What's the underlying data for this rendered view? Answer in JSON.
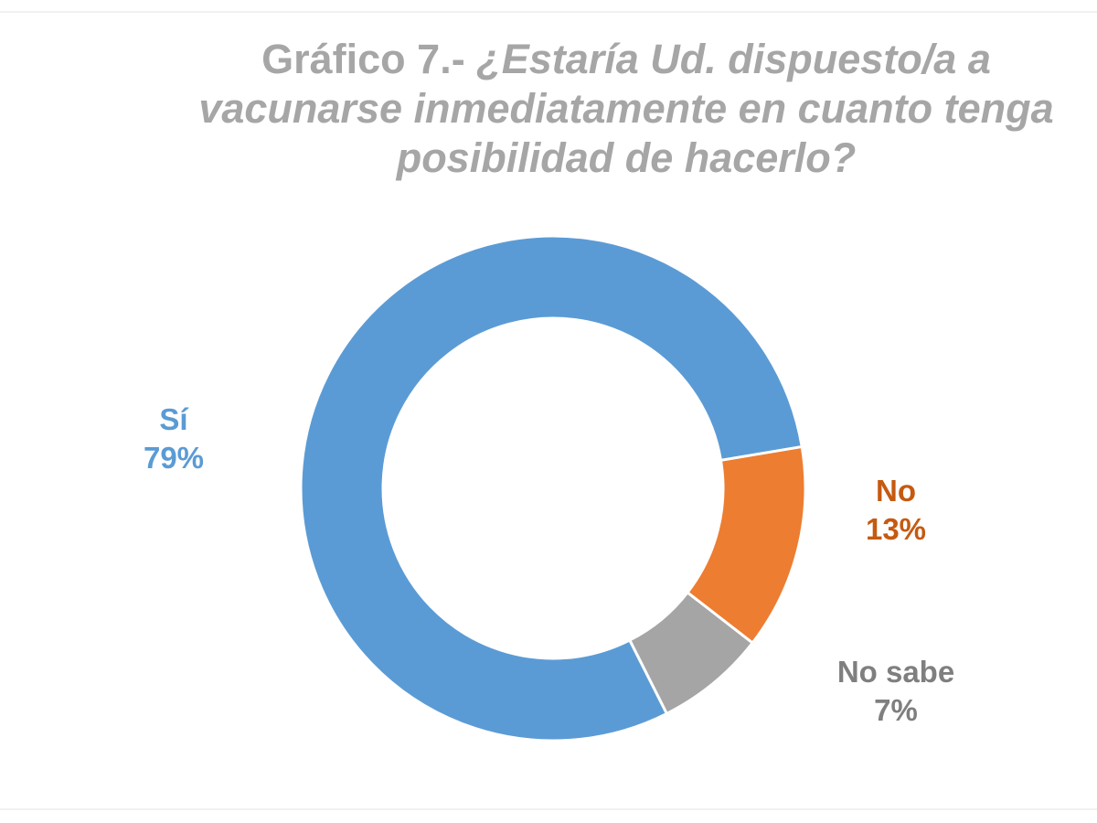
{
  "chart_data": {
    "type": "pie",
    "variant": "donut",
    "title_lines": [
      "Gráfico 7.- ¿Estaría Ud. dispuesto/a a",
      "vacunarse inmediatamente en cuanto tenga",
      "posibilidad de hacerlo?"
    ],
    "slices": [
      {
        "category": "Sí",
        "value": 79,
        "label": "79%",
        "color": "#5b9bd5",
        "label_color": "#5b9bd5"
      },
      {
        "category": "No",
        "value": 13,
        "label": "13%",
        "color": "#ed7d31",
        "label_color": "#c55a11"
      },
      {
        "category": "No sabe",
        "value": 7,
        "label": "7%",
        "color": "#a5a5a5",
        "label_color": "#7f7f7f"
      }
    ],
    "legend": "none",
    "data_labels": "outside"
  }
}
